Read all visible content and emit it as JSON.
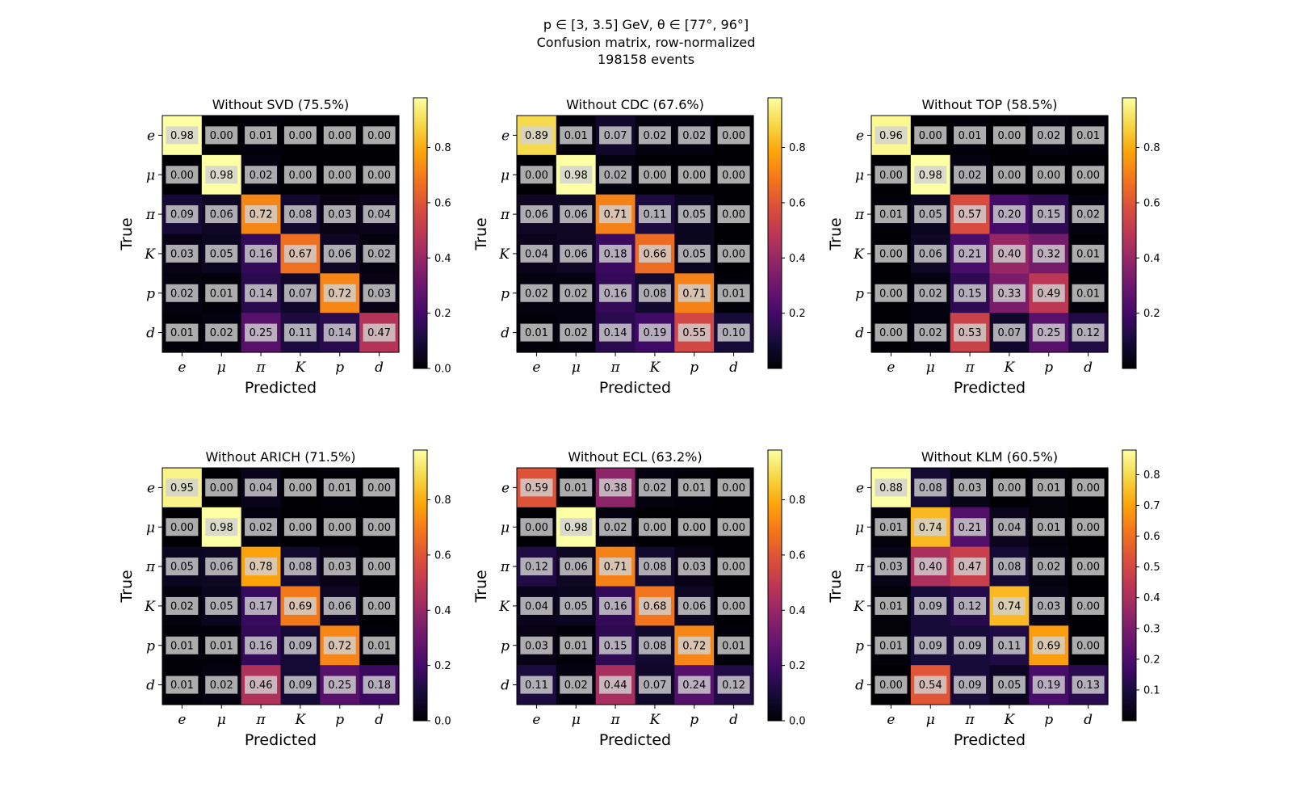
{
  "figure": {
    "suptitle": [
      "p ∈ [3, 3.5] GeV, θ ∈ [77°, 96°]",
      "Confusion matrix, row-normalized",
      "198158 events"
    ]
  },
  "chart_data": [
    {
      "type": "heatmap",
      "title": "Without SVD (75.5%)",
      "xlabel": "Predicted",
      "ylabel": "True",
      "x_categories": [
        "e",
        "μ",
        "π",
        "K",
        "p",
        "d"
      ],
      "y_categories": [
        "e",
        "μ",
        "π",
        "K",
        "p",
        "d"
      ],
      "values": [
        [
          0.98,
          0.0,
          0.01,
          0.0,
          0.0,
          0.0
        ],
        [
          0.0,
          0.98,
          0.02,
          0.0,
          0.0,
          0.0
        ],
        [
          0.09,
          0.06,
          0.72,
          0.08,
          0.03,
          0.04
        ],
        [
          0.03,
          0.05,
          0.16,
          0.67,
          0.06,
          0.02
        ],
        [
          0.02,
          0.01,
          0.14,
          0.07,
          0.72,
          0.03
        ],
        [
          0.01,
          0.02,
          0.25,
          0.11,
          0.14,
          0.47
        ]
      ],
      "colorbar": {
        "colormap": "inferno",
        "range": [
          0,
          0.98
        ],
        "ticks": [
          "0.0",
          "0.2",
          "0.4",
          "0.6",
          "0.8"
        ],
        "tick_values": [
          0,
          0.2,
          0.4,
          0.6,
          0.8
        ]
      }
    },
    {
      "type": "heatmap",
      "title": "Without CDC (67.6%)",
      "xlabel": "Predicted",
      "ylabel": "True",
      "x_categories": [
        "e",
        "μ",
        "π",
        "K",
        "p",
        "d"
      ],
      "y_categories": [
        "e",
        "μ",
        "π",
        "K",
        "p",
        "d"
      ],
      "values": [
        [
          0.89,
          0.01,
          0.07,
          0.02,
          0.02,
          0.0
        ],
        [
          0.0,
          0.98,
          0.02,
          0.0,
          0.0,
          0.0
        ],
        [
          0.06,
          0.06,
          0.71,
          0.11,
          0.05,
          0.0
        ],
        [
          0.04,
          0.06,
          0.18,
          0.66,
          0.05,
          0.0
        ],
        [
          0.02,
          0.02,
          0.16,
          0.08,
          0.71,
          0.01
        ],
        [
          0.01,
          0.02,
          0.14,
          0.19,
          0.55,
          0.1
        ]
      ],
      "colorbar": {
        "colormap": "inferno",
        "range": [
          0,
          0.98
        ],
        "ticks": [
          "0.2",
          "0.4",
          "0.6",
          "0.8"
        ],
        "tick_values": [
          0.2,
          0.4,
          0.6,
          0.8
        ]
      }
    },
    {
      "type": "heatmap",
      "title": "Without TOP (58.5%)",
      "xlabel": "Predicted",
      "ylabel": "True",
      "x_categories": [
        "e",
        "μ",
        "π",
        "K",
        "p",
        "d"
      ],
      "y_categories": [
        "e",
        "μ",
        "π",
        "K",
        "p",
        "d"
      ],
      "values": [
        [
          0.96,
          0.0,
          0.01,
          0.0,
          0.02,
          0.01
        ],
        [
          0.0,
          0.98,
          0.02,
          0.0,
          0.0,
          0.0
        ],
        [
          0.01,
          0.05,
          0.57,
          0.2,
          0.15,
          0.02
        ],
        [
          0.0,
          0.06,
          0.21,
          0.4,
          0.32,
          0.01
        ],
        [
          0.0,
          0.02,
          0.15,
          0.33,
          0.49,
          0.01
        ],
        [
          0.0,
          0.02,
          0.53,
          0.07,
          0.25,
          0.12
        ]
      ],
      "colorbar": {
        "colormap": "inferno",
        "range": [
          0,
          0.98
        ],
        "ticks": [
          "0.2",
          "0.4",
          "0.6",
          "0.8"
        ],
        "tick_values": [
          0.2,
          0.4,
          0.6,
          0.8
        ]
      }
    },
    {
      "type": "heatmap",
      "title": "Without ARICH (71.5%)",
      "xlabel": "Predicted",
      "ylabel": "True",
      "x_categories": [
        "e",
        "μ",
        "π",
        "K",
        "p",
        "d"
      ],
      "y_categories": [
        "e",
        "μ",
        "π",
        "K",
        "p",
        "d"
      ],
      "values": [
        [
          0.95,
          0.0,
          0.04,
          0.0,
          0.01,
          0.0
        ],
        [
          0.0,
          0.98,
          0.02,
          0.0,
          0.0,
          0.0
        ],
        [
          0.05,
          0.06,
          0.78,
          0.08,
          0.03,
          0.0
        ],
        [
          0.02,
          0.05,
          0.17,
          0.69,
          0.06,
          0.0
        ],
        [
          0.01,
          0.01,
          0.16,
          0.09,
          0.72,
          0.01
        ],
        [
          0.01,
          0.02,
          0.46,
          0.09,
          0.25,
          0.18
        ]
      ],
      "colorbar": {
        "colormap": "inferno",
        "range": [
          0,
          0.98
        ],
        "ticks": [
          "0.0",
          "0.2",
          "0.4",
          "0.6",
          "0.8"
        ],
        "tick_values": [
          0,
          0.2,
          0.4,
          0.6,
          0.8
        ]
      }
    },
    {
      "type": "heatmap",
      "title": "Without ECL (63.2%)",
      "xlabel": "Predicted",
      "ylabel": "True",
      "x_categories": [
        "e",
        "μ",
        "π",
        "K",
        "p",
        "d"
      ],
      "y_categories": [
        "e",
        "μ",
        "π",
        "K",
        "p",
        "d"
      ],
      "values": [
        [
          0.59,
          0.01,
          0.38,
          0.02,
          0.01,
          0.0
        ],
        [
          0.0,
          0.98,
          0.02,
          0.0,
          0.0,
          0.0
        ],
        [
          0.12,
          0.06,
          0.71,
          0.08,
          0.03,
          0.0
        ],
        [
          0.04,
          0.05,
          0.16,
          0.68,
          0.06,
          0.0
        ],
        [
          0.03,
          0.01,
          0.15,
          0.08,
          0.72,
          0.01
        ],
        [
          0.11,
          0.02,
          0.44,
          0.07,
          0.24,
          0.12
        ]
      ],
      "colorbar": {
        "colormap": "inferno",
        "range": [
          0,
          0.98
        ],
        "ticks": [
          "0.0",
          "0.2",
          "0.4",
          "0.6",
          "0.8"
        ],
        "tick_values": [
          0,
          0.2,
          0.4,
          0.6,
          0.8
        ]
      }
    },
    {
      "type": "heatmap",
      "title": "Without KLM (60.5%)",
      "xlabel": "Predicted",
      "ylabel": "True",
      "x_categories": [
        "e",
        "μ",
        "π",
        "K",
        "p",
        "d"
      ],
      "y_categories": [
        "e",
        "μ",
        "π",
        "K",
        "p",
        "d"
      ],
      "values": [
        [
          0.88,
          0.08,
          0.03,
          0.0,
          0.01,
          0.0
        ],
        [
          0.01,
          0.74,
          0.21,
          0.04,
          0.01,
          0.0
        ],
        [
          0.03,
          0.4,
          0.47,
          0.08,
          0.02,
          0.0
        ],
        [
          0.01,
          0.09,
          0.12,
          0.74,
          0.03,
          0.0
        ],
        [
          0.01,
          0.09,
          0.09,
          0.11,
          0.69,
          0.0
        ],
        [
          0.0,
          0.54,
          0.09,
          0.05,
          0.19,
          0.13
        ]
      ],
      "colorbar": {
        "colormap": "inferno",
        "range": [
          0,
          0.88
        ],
        "ticks": [
          "0.1",
          "0.2",
          "0.3",
          "0.4",
          "0.5",
          "0.6",
          "0.7",
          "0.8"
        ],
        "tick_values": [
          0.1,
          0.2,
          0.3,
          0.4,
          0.5,
          0.6,
          0.7,
          0.8
        ]
      }
    }
  ]
}
